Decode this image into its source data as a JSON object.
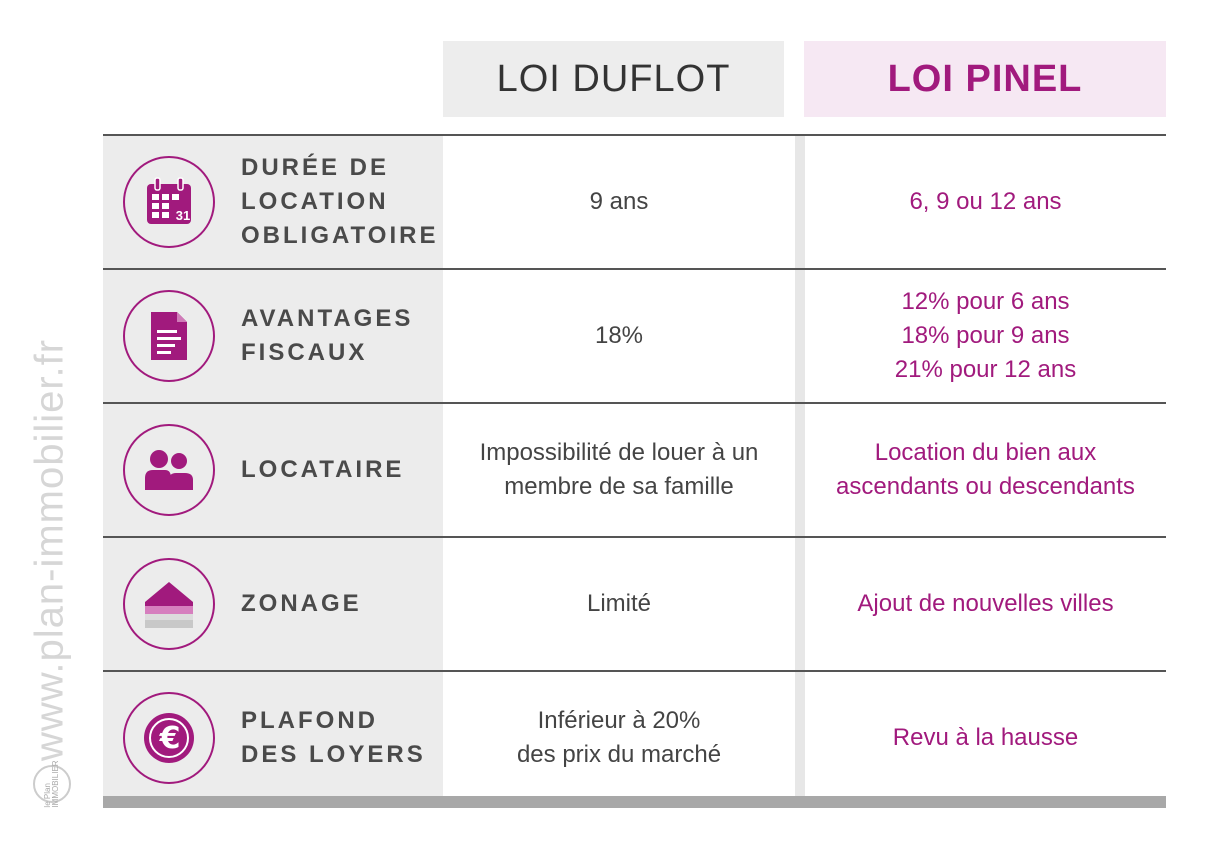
{
  "header": {
    "duflot_title": "LOI DUFLOT",
    "pinel_title": "LOI PINEL"
  },
  "rows": [
    {
      "icon": "calendar-icon",
      "label": "DURÉE DE\nLOCATION\nOBLIGATOIRE",
      "duflot": "9 ans",
      "pinel": "6, 9 ou 12 ans"
    },
    {
      "icon": "document-icon",
      "label": "AVANTAGES\nFISCAUX",
      "duflot": "18%",
      "pinel": "12% pour 6 ans\n18% pour 9 ans\n21% pour 12 ans"
    },
    {
      "icon": "people-icon",
      "label": "LOCATAIRE",
      "duflot": "Impossibilité de louer à un\nmembre de sa famille",
      "pinel": "Location du bien aux\nascendants ou descendants"
    },
    {
      "icon": "house-icon",
      "label": "ZONAGE",
      "duflot": "Limité",
      "pinel": "Ajout de nouvelles villes"
    },
    {
      "icon": "euro-icon",
      "label": "PLAFOND\nDES LOYERS",
      "duflot": "Inférieur à 20%\ndes prix du marché",
      "pinel": "Revu à la hausse"
    }
  ],
  "calendar_day": "31",
  "watermark": "www.plan-immobilier.fr",
  "logo": "le Plan IMMOBILIER",
  "colors": {
    "accent": "#a11a7d",
    "label_bg": "#ececec",
    "pinel_header_bg": "#f6e8f3",
    "duflot_header_bg": "#ededed"
  }
}
